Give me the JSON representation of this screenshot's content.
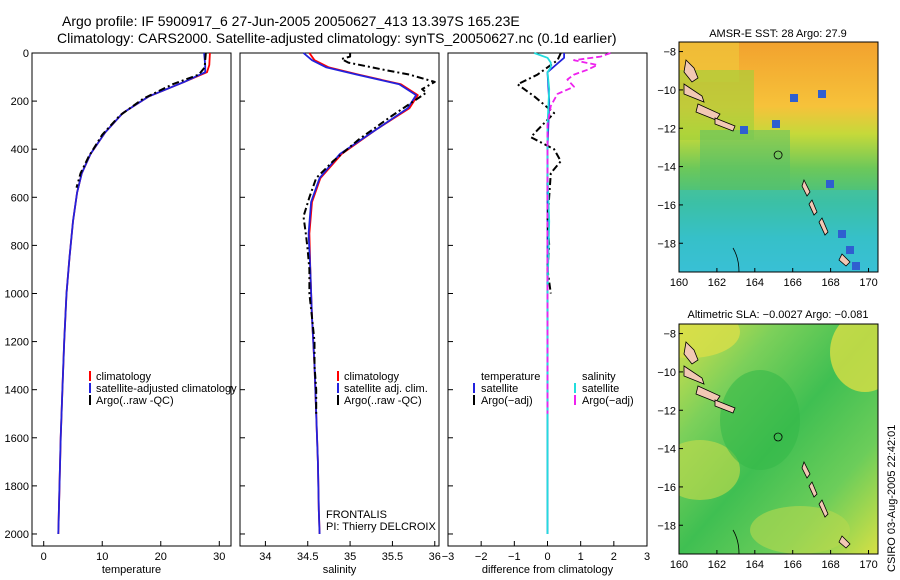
{
  "header": {
    "line1": "Argo profile: IF 5900917_6 27-Jun-2005 20050627_413 13.397S 165.23E",
    "line2": "Climatology: CARS2000. Satellite-adjusted climatology: synTS_20050627.nc (0.1d earlier)"
  },
  "footer": {
    "credit": "CSIRO 03-Aug-2005 22:42:01"
  },
  "colors": {
    "red": "#ff0000",
    "blue": "#2222dd",
    "black": "#000000",
    "cyan": "#22dddd",
    "magenta": "#ee22ee"
  },
  "chart_data": [
    {
      "type": "line",
      "id": "temperature",
      "xlabel": "temperature",
      "xlim": [
        -2,
        32
      ],
      "ylim": [
        2050,
        0
      ],
      "xticks": [
        0,
        10,
        20,
        30
      ],
      "xtick_labels": [
        "0",
        "10",
        "20",
        "30"
      ],
      "yticks": [
        0,
        200,
        400,
        600,
        800,
        1000,
        1200,
        1400,
        1600,
        1800,
        2000
      ],
      "ytick_labels": [
        "0",
        "200",
        "400",
        "600",
        "800",
        "1000",
        "1200",
        "1400",
        "1600",
        "1800",
        "2000"
      ],
      "legend": {
        "placement": "lower-right",
        "entries": [
          "climatology",
          "satellite-adjusted climatology",
          "Argo(..raw -QC)"
        ]
      },
      "series": [
        {
          "name": "climatology",
          "color": "red",
          "dash": "solid",
          "points": [
            [
              28.4,
              0
            ],
            [
              28.3,
              50
            ],
            [
              27.9,
              80
            ],
            [
              24,
              120
            ],
            [
              18,
              180
            ],
            [
              13.5,
              250
            ],
            [
              10.5,
              330
            ],
            [
              8,
              420
            ],
            [
              6.5,
              500
            ],
            [
              5.7,
              580
            ],
            [
              5.0,
              700
            ],
            [
              4.4,
              850
            ],
            [
              3.9,
              1000
            ],
            [
              3.5,
              1200
            ],
            [
              3.2,
              1400
            ],
            [
              2.9,
              1600
            ],
            [
              2.7,
              1800
            ],
            [
              2.5,
              2000
            ]
          ]
        },
        {
          "name": "satellite-adjusted climatology",
          "color": "blue",
          "dash": "solid",
          "points": [
            [
              27.4,
              0
            ],
            [
              27.6,
              50
            ],
            [
              27.6,
              80
            ],
            [
              24,
              120
            ],
            [
              18,
              180
            ],
            [
              13.5,
              250
            ],
            [
              10.5,
              330
            ],
            [
              8,
              420
            ],
            [
              6.5,
              500
            ],
            [
              5.7,
              580
            ],
            [
              5.0,
              700
            ],
            [
              4.4,
              850
            ],
            [
              3.9,
              1000
            ],
            [
              3.5,
              1200
            ],
            [
              3.2,
              1400
            ],
            [
              2.9,
              1600
            ],
            [
              2.7,
              1800
            ],
            [
              2.5,
              2000
            ]
          ]
        },
        {
          "name": "Argo(..raw -QC)",
          "color": "black",
          "dash": "dashdot",
          "points": [
            [
              27.7,
              0
            ],
            [
              27.6,
              30
            ],
            [
              27.5,
              60
            ],
            [
              26.5,
              90
            ],
            [
              22,
              130
            ],
            [
              17,
              190
            ],
            [
              13,
              260
            ],
            [
              10,
              340
            ],
            [
              7.7,
              430
            ],
            [
              6.3,
              500
            ],
            [
              5.6,
              560
            ]
          ]
        }
      ]
    },
    {
      "type": "line",
      "id": "salinity",
      "xlabel": "salinity",
      "xlim": [
        33.7,
        36.05
      ],
      "ylim": [
        2050,
        0
      ],
      "xticks": [
        34,
        34.5,
        35,
        35.5,
        36
      ],
      "xtick_labels": [
        "34",
        "34.5",
        "35",
        "35.5",
        "36"
      ],
      "legend": {
        "placement": "lower-right",
        "entries": [
          "climatology",
          "satellite adj. clim.",
          "Argo(..raw -QC)"
        ]
      },
      "annotation": [
        "FRONTALIS",
        "PI: Thierry DELCROIX"
      ],
      "series": [
        {
          "name": "climatology",
          "color": "red",
          "dash": "solid",
          "points": [
            [
              34.52,
              0
            ],
            [
              34.58,
              30
            ],
            [
              34.75,
              60
            ],
            [
              35.1,
              90
            ],
            [
              35.6,
              130
            ],
            [
              35.8,
              175
            ],
            [
              35.7,
              230
            ],
            [
              35.3,
              320
            ],
            [
              34.9,
              420
            ],
            [
              34.65,
              520
            ],
            [
              34.55,
              620
            ],
            [
              34.52,
              750
            ],
            [
              34.53,
              900
            ],
            [
              34.55,
              1100
            ],
            [
              34.58,
              1300
            ],
            [
              34.6,
              1500
            ],
            [
              34.62,
              1700
            ],
            [
              34.63,
              1900
            ],
            [
              34.64,
              2000
            ]
          ]
        },
        {
          "name": "satellite adj. clim.",
          "color": "blue",
          "dash": "solid",
          "points": [
            [
              34.45,
              0
            ],
            [
              34.55,
              30
            ],
            [
              34.72,
              60
            ],
            [
              35.08,
              90
            ],
            [
              35.58,
              130
            ],
            [
              35.78,
              175
            ],
            [
              35.68,
              230
            ],
            [
              35.3,
              320
            ],
            [
              34.88,
              420
            ],
            [
              34.64,
              520
            ],
            [
              34.54,
              620
            ],
            [
              34.51,
              750
            ],
            [
              34.53,
              900
            ],
            [
              34.55,
              1100
            ],
            [
              34.58,
              1300
            ],
            [
              34.6,
              1500
            ],
            [
              34.62,
              1700
            ],
            [
              34.63,
              1900
            ],
            [
              34.64,
              2000
            ]
          ]
        },
        {
          "name": "Argo(..raw -QC)",
          "color": "black",
          "dash": "dashdot",
          "points": [
            [
              35.0,
              0
            ],
            [
              35.0,
              15
            ],
            [
              34.9,
              25
            ],
            [
              34.98,
              40
            ],
            [
              35.4,
              70
            ],
            [
              35.7,
              90
            ],
            [
              36.0,
              120
            ],
            [
              35.85,
              150
            ],
            [
              35.9,
              165
            ],
            [
              35.5,
              260
            ],
            [
              35.1,
              360
            ],
            [
              34.8,
              450
            ],
            [
              34.6,
              520
            ],
            [
              34.52,
              600
            ],
            [
              34.45,
              680
            ],
            [
              34.48,
              760
            ],
            [
              34.5,
              820
            ],
            [
              34.52,
              900
            ],
            [
              34.52,
              1000
            ],
            [
              34.55,
              1100
            ],
            [
              34.58,
              1200
            ],
            [
              34.58,
              1300
            ],
            [
              34.6,
              1400
            ],
            [
              34.6,
              1500
            ]
          ]
        }
      ]
    },
    {
      "type": "line",
      "id": "difference",
      "xlabel": "difference from climatology",
      "xlim": [
        -3,
        3
      ],
      "ylim": [
        2050,
        0
      ],
      "xticks": [
        -3,
        -2,
        -1,
        0,
        1,
        2,
        3
      ],
      "xtick_labels": [
        "−3",
        "−2",
        "−1",
        "0",
        "1",
        "2",
        "3"
      ],
      "legend": {
        "placement": "lower-center",
        "temperature_header": "temperature",
        "salinity_header": "salinity",
        "entries": [
          "satellite",
          "Argo(−adj)",
          "satellite",
          "Argo(−adj)"
        ]
      },
      "series": [
        {
          "name": "temperature satellite",
          "color": "blue",
          "dash": "solid",
          "points": [
            [
              0.5,
              0
            ],
            [
              0.5,
              20
            ],
            [
              0.25,
              50
            ],
            [
              0,
              80
            ],
            [
              0.05,
              200
            ],
            [
              0,
              400
            ],
            [
              0,
              2000
            ]
          ]
        },
        {
          "name": "temperature Argo(-adj)",
          "color": "black",
          "dash": "dashdot",
          "points": [
            [
              0.4,
              0
            ],
            [
              0.3,
              30
            ],
            [
              -0.3,
              90
            ],
            [
              -0.9,
              130
            ],
            [
              -0.4,
              180
            ],
            [
              0.2,
              250
            ],
            [
              -0.3,
              320
            ],
            [
              -0.5,
              350
            ],
            [
              0.2,
              400
            ],
            [
              0.4,
              450
            ],
            [
              0.1,
              500
            ],
            [
              0,
              700
            ],
            [
              0.05,
              800
            ],
            [
              0,
              900
            ],
            [
              0.1,
              1000
            ]
          ]
        },
        {
          "name": "salinity satellite",
          "color": "cyan",
          "dash": "solid",
          "points": [
            [
              -0.4,
              0
            ],
            [
              0,
              20
            ],
            [
              0.1,
              40
            ],
            [
              0.1,
              60
            ],
            [
              0,
              80
            ],
            [
              0.05,
              150
            ],
            [
              0,
              300
            ],
            [
              0,
              500
            ],
            [
              0.05,
              700
            ],
            [
              0,
              1000
            ],
            [
              0,
              2000
            ]
          ]
        },
        {
          "name": "salinity Argo(-adj)",
          "color": "magenta",
          "dash": "dashed",
          "points": [
            [
              1.9,
              0
            ],
            [
              1.6,
              15
            ],
            [
              0.8,
              30
            ],
            [
              1.5,
              50
            ],
            [
              1.2,
              70
            ],
            [
              0.8,
              90
            ],
            [
              0.6,
              110
            ],
            [
              0.8,
              140
            ],
            [
              0.3,
              170
            ],
            [
              0.1,
              220
            ],
            [
              0,
              300
            ],
            [
              0,
              500
            ],
            [
              0,
              700
            ],
            [
              0,
              1000
            ],
            [
              0,
              1200
            ],
            [
              0,
              1500
            ]
          ]
        }
      ]
    },
    {
      "type": "heatmap",
      "id": "sst-map",
      "title": "AMSR-E SST: 28 Argo: 27.9",
      "xlim": [
        160,
        170.5
      ],
      "ylim": [
        -19.5,
        -7.5
      ],
      "xticks": [
        160,
        162,
        164,
        166,
        168,
        170
      ],
      "xtick_labels": [
        "160",
        "162",
        "164",
        "166",
        "168",
        "170"
      ],
      "yticks": [
        -8,
        -10,
        -12,
        -14,
        -16,
        -18
      ],
      "ytick_labels": [
        "−8",
        "−10",
        "−12",
        "−14",
        "−16",
        "−18"
      ],
      "float_position": [
        165.23,
        -13.397
      ]
    },
    {
      "type": "heatmap",
      "id": "sla-map",
      "title": "Altimetric SLA: −0.0027 Argo: −0.081",
      "xlim": [
        160,
        170.5
      ],
      "ylim": [
        -19.5,
        -7.5
      ],
      "xticks": [
        160,
        162,
        164,
        166,
        168,
        170
      ],
      "xtick_labels": [
        "160",
        "162",
        "164",
        "166",
        "168",
        "170"
      ],
      "yticks": [
        -8,
        -10,
        -12,
        -14,
        -16,
        -18
      ],
      "ytick_labels": [
        "−8",
        "−10",
        "−12",
        "−14",
        "−16",
        "−18"
      ],
      "float_position": [
        165.23,
        -13.397
      ]
    }
  ]
}
